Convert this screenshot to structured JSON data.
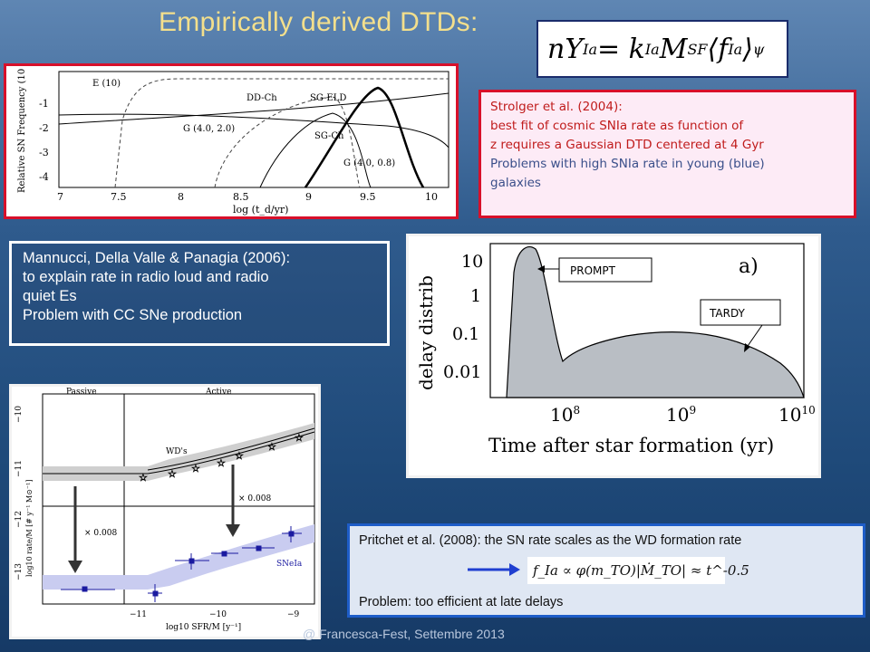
{
  "slide": {
    "title": "Empirically derived DTDs:",
    "footer": "@ Francesca-Fest, Settembre 2013"
  },
  "equation_header": {
    "lhs": "nY",
    "lhs_sub": "Ia",
    "eq": " = k",
    "k_sub": "Ia",
    "M": "M",
    "M_sub": "SF",
    "avg_open": "⟨",
    "f": "f",
    "f_sub": "Ia",
    "avg_close": "⟩",
    "psi_sub": "ψ"
  },
  "strolger_box": {
    "line1": "Strolger et al.  (2004):",
    "line2": "best fit of cosmic SNIa rate as function of",
    "line3": "z requires a Gaussian DTD centered at 4 Gyr",
    "line4": "Problems with  high SNIa rate in young (blue)",
    "line5": "galaxies"
  },
  "mannucci_box": {
    "line1": "Mannucci, Della Valle & Panagia (2006):",
    "line2": "to explain rate in radio loud and radio",
    "line3": "quiet Es",
    "line4": "Problem with CC SNe production"
  },
  "pritchet_box": {
    "line1": "Pritchet et al. (2008): the SN rate scales as the WD formation rate",
    "formula": "f_Ia ∝ φ(m_TO)|Ṁ_TO| ≈ t^-0.5",
    "line3": "Problem: too efficient at late delays"
  },
  "fig_strolger": {
    "ylabel": "Relative SN Frequency (10",
    "xlabel": "log (t_d/yr)",
    "xticks": [
      "7",
      "7.5",
      "8",
      "8.5",
      "9",
      "9.5",
      "10"
    ],
    "yticks": [
      "-1",
      "-2",
      "-3",
      "-4"
    ],
    "labels": [
      "E (10)",
      "DD-Ch",
      "SG-ELD",
      "G (4.0, 2.0)",
      "SG-Ch",
      "G (4.0, 0.8)"
    ]
  },
  "fig_mannucci": {
    "tag_prompt": "PROMPT",
    "tag_tardy": "TARDY",
    "ylabel": "delay distrib",
    "yticks": [
      "10",
      "1",
      "0.1",
      "0.01"
    ],
    "xticks": [
      "10",
      "10",
      "10"
    ],
    "xtick_exp": [
      "8",
      "9",
      "10"
    ],
    "panel_label": "a)",
    "xlabel": "Time after star formation  (yr)"
  },
  "fig_sullivan": {
    "header_left": "Passive",
    "header_right": "Active",
    "ylabel": "log10 rate/M [# y⁻¹ M⊙⁻¹]",
    "yticks": [
      "−10",
      "−11",
      "−12",
      "−13"
    ],
    "xticks": [
      "−11",
      "−10",
      "−9"
    ],
    "xlabel": "log10 SFR/M [y⁻¹]",
    "label_wd": "WD's",
    "label_factor_left": "× 0.008",
    "label_factor_right": "× 0.008",
    "label_snia": "SNeIa"
  },
  "colors": {
    "title": "#f3df8c",
    "red_border": "#d8102a",
    "blue_border": "#1e5dc8",
    "arrow": "#1f3fd0"
  }
}
